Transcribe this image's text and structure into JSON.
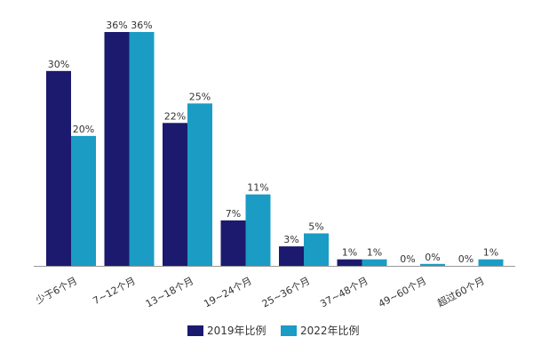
{
  "chart_data": {
    "type": "bar",
    "categories": [
      "少于6个月",
      "7~12个月",
      "13~18个月",
      "19~24个月",
      "25~36个月",
      "37~48个月",
      "49~60个月",
      "超过60个月"
    ],
    "series": [
      {
        "name": "2019年比例",
        "values": [
          30,
          36,
          22,
          7,
          3,
          1,
          0,
          0
        ],
        "labels": [
          "30%",
          "36%",
          "22%",
          "7%",
          "3%",
          "1%",
          "0%",
          "0%"
        ],
        "color": "#1c1a6e"
      },
      {
        "name": "2022年比例",
        "values": [
          20,
          36,
          25,
          11,
          5,
          1,
          0.3,
          1
        ],
        "labels": [
          "20%",
          "36%",
          "25%",
          "11%",
          "5%",
          "1%",
          "0%",
          "1%"
        ],
        "color": "#1a9cc4"
      }
    ],
    "ylim": [
      0,
      36
    ],
    "grid": false,
    "legend_position": "bottom-center",
    "axis_color": "#999999"
  }
}
